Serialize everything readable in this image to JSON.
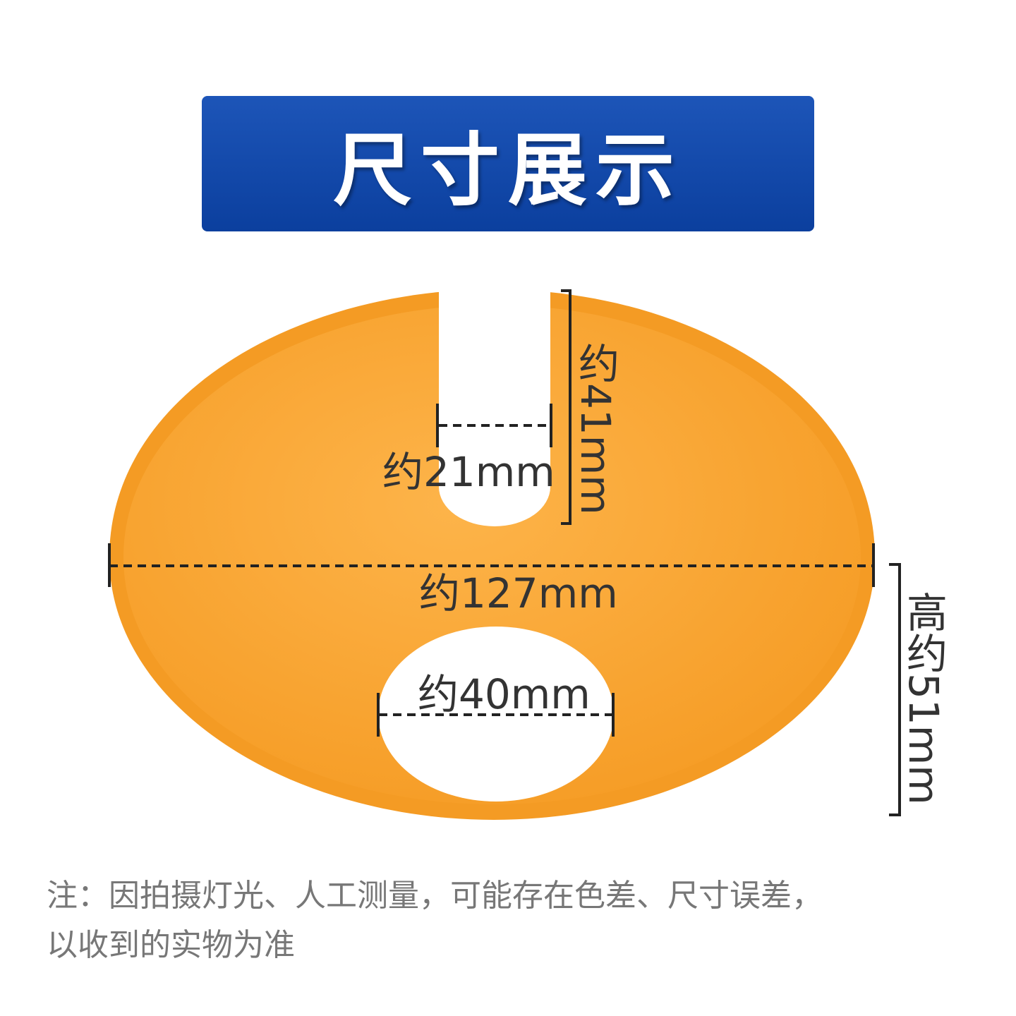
{
  "header": {
    "title": "尺寸展示"
  },
  "dimensions": {
    "slot_width": "约21mm",
    "slot_depth": "约41mm",
    "diameter": "约127mm",
    "hole_diameter": "约40mm",
    "height": "高约51mm"
  },
  "note": {
    "lines": [
      "注：因拍摄灯光、人工测量，可能存在色差、尺寸误差，",
      "以收到的实物为准"
    ]
  }
}
